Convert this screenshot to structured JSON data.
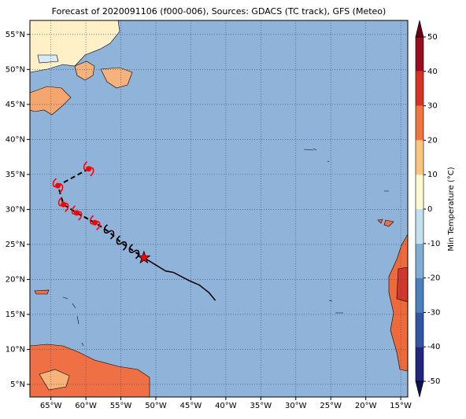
{
  "chart_data": {
    "type": "map",
    "title": "Forecast of 2020091106 (f000-006), Sources: GDACS (TC track), GFS (Meteo)",
    "xlim": [
      -68,
      -14
    ],
    "ylim": [
      3.2,
      57
    ],
    "xticks": [
      {
        "value": -65,
        "label": "65°W"
      },
      {
        "value": -60,
        "label": "60°W"
      },
      {
        "value": -55,
        "label": "55°W"
      },
      {
        "value": -50,
        "label": "50°W"
      },
      {
        "value": -45,
        "label": "45°W"
      },
      {
        "value": -40,
        "label": "40°W"
      },
      {
        "value": -35,
        "label": "35°W"
      },
      {
        "value": -30,
        "label": "30°W"
      },
      {
        "value": -25,
        "label": "25°W"
      },
      {
        "value": -20,
        "label": "20°W"
      },
      {
        "value": -15,
        "label": "15°W"
      }
    ],
    "yticks": [
      {
        "value": 5,
        "label": "5°N"
      },
      {
        "value": 10,
        "label": "10°N"
      },
      {
        "value": 15,
        "label": "15°N"
      },
      {
        "value": 20,
        "label": "20°N"
      },
      {
        "value": 25,
        "label": "25°N"
      },
      {
        "value": 30,
        "label": "30°N"
      },
      {
        "value": 35,
        "label": "35°N"
      },
      {
        "value": 40,
        "label": "40°N"
      },
      {
        "value": 45,
        "label": "45°N"
      },
      {
        "value": 50,
        "label": "50°N"
      },
      {
        "value": 55,
        "label": "55°N"
      }
    ],
    "grid": true,
    "ocean_color": "#8fb3d9",
    "tracks": [
      {
        "color": "#ff0000",
        "marker": "hurricane-dot",
        "x": [
          -59.6,
          -64.0,
          -63.2,
          -61.3,
          -58.7
        ],
        "y": [
          35.8,
          33.4,
          30.7,
          29.5,
          28.1
        ]
      },
      {
        "color": "#000000",
        "marker": "hurricane",
        "x": [
          -56.7,
          -54.9,
          -53.1
        ],
        "y": [
          26.8,
          25.2,
          24.0
        ]
      }
    ],
    "current_position": {
      "color": "#ff0000",
      "x": -51.7,
      "y": 23.1
    },
    "forecast_path": {
      "color": "#000000",
      "x": [
        -51.7,
        -48.6,
        -47.5,
        -45.2,
        -43.8,
        -42.4,
        -41.5
      ],
      "y": [
        23.1,
        21.2,
        21.0,
        19.8,
        19.2,
        18.1,
        17.0
      ]
    },
    "colorbar": {
      "label": "Min Temperature (°C)",
      "lim": [
        -50,
        50
      ],
      "ticks": [
        -50,
        -40,
        -30,
        -20,
        -10,
        0,
        10,
        20,
        30,
        40,
        50
      ],
      "colors": [
        "#20267e",
        "#3256a6",
        "#4a80bb",
        "#7fadd4",
        "#c4e0ee",
        "#fff8d0",
        "#fbc57e",
        "#f0763f",
        "#d53325",
        "#9a0d21"
      ],
      "under_color": "#0d1250",
      "over_color": "#6b0015"
    }
  }
}
